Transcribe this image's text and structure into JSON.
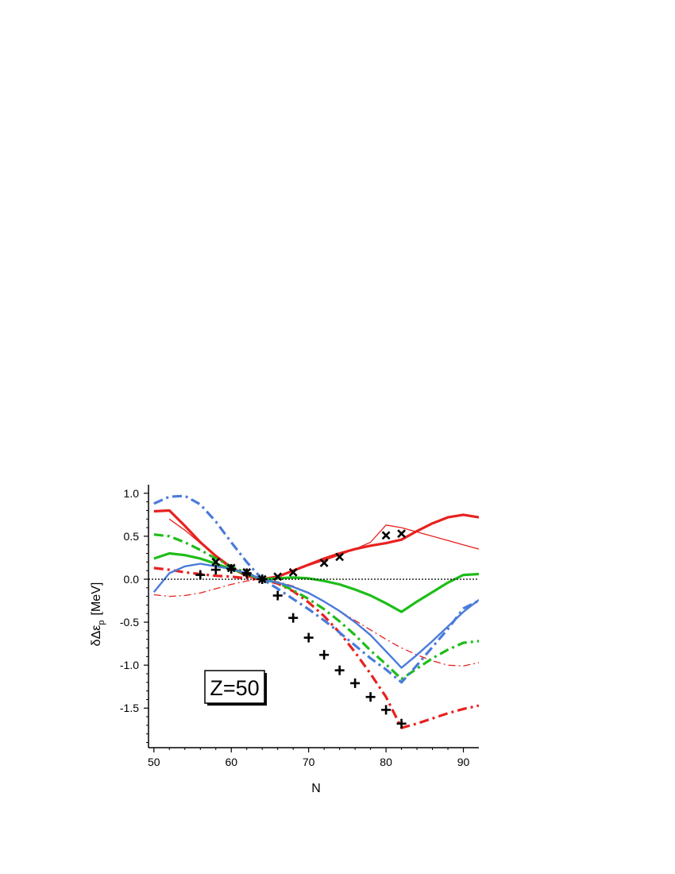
{
  "chart_data": {
    "type": "line",
    "xlabel": "N",
    "ylabel": "δΔε",
    "ylabel_subscript": "p",
    "ylabel_unit": "[MeV]",
    "xlim": [
      49.3,
      92
    ],
    "ylim": [
      -1.96,
      1.1
    ],
    "x_ticks": [
      50,
      60,
      70,
      80,
      90
    ],
    "x_tick_labels": [
      "50",
      "60",
      "70",
      "80",
      "90"
    ],
    "y_ticks": [
      1.0,
      0.5,
      0.0,
      -0.5,
      -1.0,
      -1.5
    ],
    "y_tick_labels": [
      "1.0",
      "0.5",
      "0.0",
      "-0.5",
      "-1.0",
      "-1.5"
    ],
    "annotation": "Z=50",
    "zero_line": true,
    "grid": false,
    "series": [
      {
        "color": "#e8211f",
        "style": "solid",
        "width": 3.2,
        "x": [
          50,
          52,
          54,
          56,
          58,
          60,
          62,
          64,
          66,
          68,
          70,
          72,
          74,
          76,
          78,
          80,
          82,
          84,
          86,
          88,
          90,
          92
        ],
        "y": [
          0.79,
          0.8,
          0.62,
          0.43,
          0.27,
          0.13,
          0.04,
          0.0,
          0.03,
          0.1,
          0.17,
          0.24,
          0.3,
          0.35,
          0.39,
          0.42,
          0.46,
          0.56,
          0.65,
          0.72,
          0.75,
          0.72
        ]
      },
      {
        "color": "#e8211f",
        "style": "solid",
        "width": 1.3,
        "x": [
          52,
          54,
          56,
          58,
          60,
          62,
          64,
          66,
          68,
          70,
          72,
          74,
          76,
          78,
          80,
          82,
          84,
          86,
          88,
          90,
          92
        ],
        "y": [
          0.7,
          0.57,
          0.42,
          0.28,
          0.15,
          0.05,
          0.0,
          0.04,
          0.09,
          0.16,
          0.22,
          0.28,
          0.35,
          0.43,
          0.63,
          0.6,
          0.55,
          0.5,
          0.45,
          0.4,
          0.35
        ]
      },
      {
        "color": "#e8211f",
        "style": "dashdot",
        "width": 3.2,
        "x": [
          50,
          52,
          54,
          56,
          58,
          60,
          62,
          64,
          66,
          68,
          70,
          72,
          74,
          76,
          78,
          80,
          82,
          84,
          86,
          88,
          90,
          92
        ],
        "y": [
          0.13,
          0.11,
          0.08,
          0.06,
          0.04,
          0.03,
          0.01,
          0.0,
          -0.05,
          -0.14,
          -0.27,
          -0.43,
          -0.62,
          -0.85,
          -1.1,
          -1.37,
          -1.73,
          -1.68,
          -1.62,
          -1.56,
          -1.51,
          -1.47
        ]
      },
      {
        "color": "#e8211f",
        "style": "dashdot",
        "width": 1.3,
        "x": [
          50,
          52,
          54,
          56,
          58,
          60,
          62,
          64,
          66,
          68,
          70,
          72,
          74,
          76,
          78,
          80,
          82,
          84,
          86,
          88,
          90,
          92
        ],
        "y": [
          -0.18,
          -0.2,
          -0.19,
          -0.16,
          -0.11,
          -0.06,
          -0.02,
          0.0,
          -0.03,
          -0.08,
          -0.16,
          -0.26,
          -0.37,
          -0.48,
          -0.59,
          -0.7,
          -0.8,
          -0.88,
          -0.95,
          -1.0,
          -1.01,
          -0.97
        ]
      },
      {
        "color": "#1ebd19",
        "style": "solid",
        "width": 3.2,
        "x": [
          50,
          52,
          54,
          56,
          58,
          60,
          62,
          64,
          66,
          68,
          70,
          72,
          74,
          76,
          78,
          80,
          82,
          84,
          86,
          88,
          90,
          92
        ],
        "y": [
          0.24,
          0.3,
          0.28,
          0.24,
          0.18,
          0.12,
          0.06,
          0.0,
          0.01,
          0.02,
          0.01,
          -0.02,
          -0.06,
          -0.12,
          -0.19,
          -0.28,
          -0.38,
          -0.26,
          -0.15,
          -0.04,
          0.05,
          0.06
        ]
      },
      {
        "color": "#1ebd19",
        "style": "dashdot",
        "width": 3.2,
        "x": [
          50,
          52,
          54,
          56,
          58,
          60,
          62,
          64,
          66,
          68,
          70,
          72,
          74,
          76,
          78,
          80,
          82,
          84,
          86,
          88,
          90,
          92
        ],
        "y": [
          0.52,
          0.5,
          0.43,
          0.34,
          0.24,
          0.15,
          0.07,
          0.0,
          -0.04,
          -0.13,
          -0.23,
          -0.35,
          -0.49,
          -0.65,
          -0.83,
          -0.99,
          -1.16,
          -1.04,
          -0.92,
          -0.82,
          -0.74,
          -0.72
        ]
      },
      {
        "color": "#4a7bd9",
        "style": "solid",
        "width": 2.4,
        "x": [
          50,
          52,
          54,
          56,
          58,
          60,
          62,
          64,
          66,
          68,
          70,
          72,
          74,
          76,
          78,
          80,
          82,
          84,
          86,
          88,
          90,
          92
        ],
        "y": [
          -0.15,
          0.07,
          0.15,
          0.18,
          0.15,
          0.12,
          0.07,
          0.0,
          -0.04,
          -0.09,
          -0.16,
          -0.26,
          -0.37,
          -0.5,
          -0.65,
          -0.84,
          -1.03,
          -0.88,
          -0.72,
          -0.55,
          -0.38,
          -0.24
        ]
      },
      {
        "color": "#4a7bd9",
        "style": "dashdot",
        "width": 3.2,
        "x": [
          50,
          52,
          54,
          56,
          58,
          60,
          62,
          64,
          66,
          68,
          70,
          72,
          74,
          76,
          78,
          80,
          82,
          84,
          86,
          88,
          90,
          92
        ],
        "y": [
          0.88,
          0.96,
          0.97,
          0.87,
          0.67,
          0.43,
          0.2,
          0.0,
          -0.11,
          -0.23,
          -0.35,
          -0.48,
          -0.62,
          -0.77,
          -0.92,
          -1.05,
          -1.2,
          -1.0,
          -0.79,
          -0.58,
          -0.34,
          -0.25
        ]
      }
    ],
    "markers": [
      {
        "symbol": "x",
        "x": [
          58,
          60,
          62,
          64,
          66,
          68,
          72,
          74,
          80,
          82
        ],
        "y": [
          0.2,
          0.13,
          0.08,
          0.0,
          0.03,
          0.08,
          0.19,
          0.26,
          0.51,
          0.53
        ]
      },
      {
        "symbol": "+",
        "x": [
          56,
          58,
          60,
          62,
          64,
          66,
          68,
          70,
          72,
          74,
          76,
          78,
          80,
          82
        ],
        "y": [
          0.05,
          0.11,
          0.12,
          0.07,
          0.0,
          -0.19,
          -0.45,
          -0.68,
          -0.88,
          -1.06,
          -1.21,
          -1.37,
          -1.52,
          -1.68
        ]
      }
    ]
  }
}
